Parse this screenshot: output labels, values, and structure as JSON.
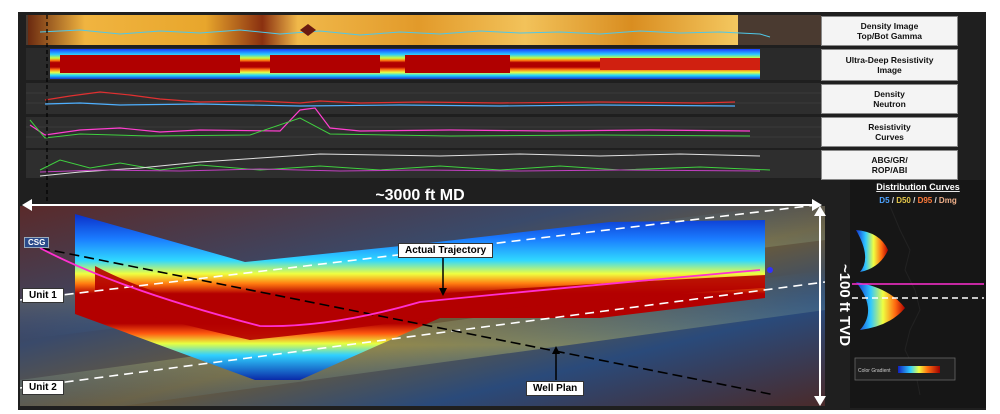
{
  "track_labels": [
    {
      "line1": "Density Image",
      "line2": "Top/Bot Gamma"
    },
    {
      "line1": "Ultra-Deep Resistivity",
      "line2": "Image"
    },
    {
      "line1": "Density",
      "line2": "Neutron"
    },
    {
      "line1": "Resistivity",
      "line2": "Curves"
    },
    {
      "line1": "ABG/GR/",
      "line2": "ROP/ABI"
    }
  ],
  "md_span": "~3000 ft MD",
  "tvd_span": "~100 ft TVD",
  "annotations": {
    "actual_trajectory": "Actual Trajectory",
    "well_plan": "Well Plan",
    "unit1": "Unit 1",
    "unit2": "Unit 2",
    "csg": "CSG"
  },
  "distribution": {
    "title": "Distribution Curves",
    "legend": [
      {
        "text": "D5",
        "color": "#4da3ff"
      },
      {
        "text": " / ",
        "color": "#dddddd"
      },
      {
        "text": "D50",
        "color": "#e6c84a"
      },
      {
        "text": " / ",
        "color": "#dddddd"
      },
      {
        "text": "D95",
        "color": "#ff7a3a"
      },
      {
        "text": " / ",
        "color": "#dddddd"
      },
      {
        "text": "Dmg",
        "color": "#f0b08a"
      }
    ],
    "gradient_label": "Color Gradient"
  },
  "colors": {
    "trajectory": "#ff2fd0",
    "plan": "#000000",
    "boundary": "#ffffff"
  }
}
